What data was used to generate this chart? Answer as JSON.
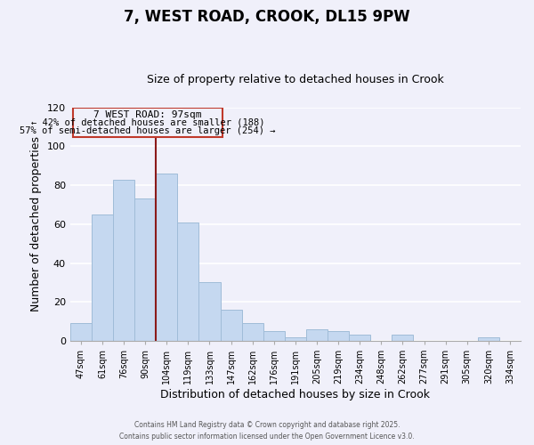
{
  "title": "7, WEST ROAD, CROOK, DL15 9PW",
  "subtitle": "Size of property relative to detached houses in Crook",
  "xlabel": "Distribution of detached houses by size in Crook",
  "ylabel": "Number of detached properties",
  "categories": [
    "47sqm",
    "61sqm",
    "76sqm",
    "90sqm",
    "104sqm",
    "119sqm",
    "133sqm",
    "147sqm",
    "162sqm",
    "176sqm",
    "191sqm",
    "205sqm",
    "219sqm",
    "234sqm",
    "248sqm",
    "262sqm",
    "277sqm",
    "291sqm",
    "305sqm",
    "320sqm",
    "334sqm"
  ],
  "values": [
    9,
    65,
    83,
    73,
    86,
    61,
    30,
    16,
    9,
    5,
    2,
    6,
    5,
    3,
    0,
    3,
    0,
    0,
    0,
    2,
    0
  ],
  "bar_color": "#c5d8f0",
  "bar_edge_color": "#a0bcd8",
  "property_label": "7 WEST ROAD: 97sqm",
  "annotation_line1": "← 42% of detached houses are smaller (188)",
  "annotation_line2": "57% of semi-detached houses are larger (254) →",
  "vline_color": "#8b1a1a",
  "ylim": [
    0,
    120
  ],
  "yticks": [
    0,
    20,
    40,
    60,
    80,
    100,
    120
  ],
  "box_color": "#c0392b",
  "footer1": "Contains HM Land Registry data © Crown copyright and database right 2025.",
  "footer2": "Contains public sector information licensed under the Open Government Licence v3.0.",
  "background_color": "#f0f0fa",
  "grid_color": "#ffffff"
}
